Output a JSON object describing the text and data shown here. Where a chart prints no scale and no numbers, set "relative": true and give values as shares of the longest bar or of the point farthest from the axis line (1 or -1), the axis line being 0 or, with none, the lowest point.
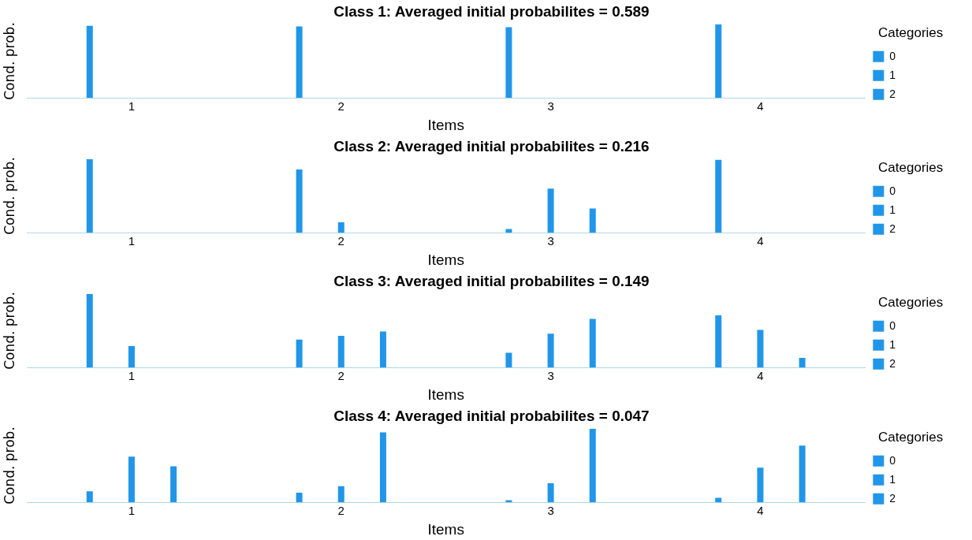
{
  "chart_data": [
    {
      "type": "bar",
      "title": "Class 1: Averaged initial probabilites = 0.589",
      "xlabel": "Items",
      "ylabel": "Cond. prob.",
      "legend_title": "Categories",
      "legend": "right",
      "relative": true,
      "categories": [
        "1",
        "2",
        "3",
        "4"
      ],
      "series": [
        {
          "name": "0",
          "color": "#2196e8",
          "values": [
            0.98,
            0.97,
            0.96,
            1
          ]
        },
        {
          "name": "1",
          "color": "#2196e8",
          "values": [
            0,
            0,
            0,
            0
          ]
        },
        {
          "name": "2",
          "color": "#2196e8",
          "values": [
            0,
            0,
            0,
            0
          ]
        }
      ]
    },
    {
      "type": "bar",
      "title": "Class 2: Averaged initial probabilites = 0.216",
      "xlabel": "Items",
      "ylabel": "Cond. prob.",
      "legend_title": "Categories",
      "legend": "right",
      "relative": true,
      "categories": [
        "1",
        "2",
        "3",
        "4"
      ],
      "series": [
        {
          "name": "0",
          "color": "#2196e8",
          "values": [
            1,
            0.86,
            0.05,
            0.99
          ]
        },
        {
          "name": "1",
          "color": "#2196e8",
          "values": [
            0,
            0.14,
            0.6,
            0
          ]
        },
        {
          "name": "2",
          "color": "#2196e8",
          "values": [
            0,
            0,
            0.33,
            0
          ]
        }
      ]
    },
    {
      "type": "bar",
      "title": "Class 3: Averaged initial probabilites = 0.149",
      "xlabel": "Items",
      "ylabel": "Cond. prob.",
      "legend_title": "Categories",
      "legend": "right",
      "relative": true,
      "categories": [
        "1",
        "2",
        "3",
        "4"
      ],
      "series": [
        {
          "name": "0",
          "color": "#2196e8",
          "values": [
            1,
            0.38,
            0.2,
            0.71
          ]
        },
        {
          "name": "1",
          "color": "#2196e8",
          "values": [
            0.29,
            0.43,
            0.46,
            0.51
          ]
        },
        {
          "name": "2",
          "color": "#2196e8",
          "values": [
            0,
            0.49,
            0.66,
            0.13
          ]
        }
      ]
    },
    {
      "type": "bar",
      "title": "Class 4: Averaged initial probabilites = 0.047",
      "xlabel": "Items",
      "ylabel": "Cond. prob.",
      "legend_title": "Categories",
      "legend": "right",
      "relative": true,
      "categories": [
        "1",
        "2",
        "3",
        "4"
      ],
      "series": [
        {
          "name": "0",
          "color": "#2196e8",
          "values": [
            0.15,
            0.13,
            0.03,
            0.06
          ]
        },
        {
          "name": "1",
          "color": "#2196e8",
          "values": [
            0.62,
            0.22,
            0.26,
            0.47
          ]
        },
        {
          "name": "2",
          "color": "#2196e8",
          "values": [
            0.49,
            0.95,
            1,
            0.77
          ]
        }
      ]
    }
  ]
}
